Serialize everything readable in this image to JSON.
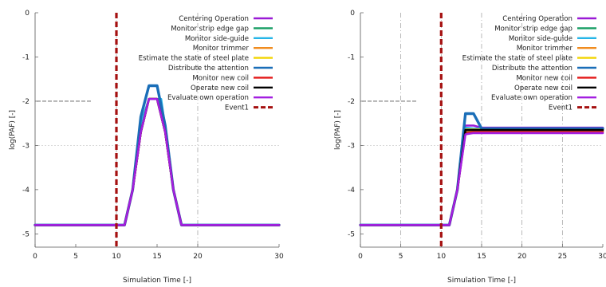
{
  "colors": {
    "centering": "#9a1bd6",
    "strip_edge": "#169e63",
    "side_guide": "#25b5e8",
    "trimmer": "#f08c1f",
    "steel_plate": "#f2d400",
    "attention": "#1a6eb8",
    "new_coil_monitor": "#e31818",
    "operate_coil": "#000000",
    "evaluate": "#a31fe0",
    "event": "#a51010"
  },
  "chart_data": [
    {
      "type": "line",
      "xlabel": "Simulation Time [-]",
      "ylabel": "log(PAF) [-]",
      "xlim": [
        0,
        30
      ],
      "ylim": [
        -5.3,
        0
      ],
      "xticks": [
        0,
        5,
        10,
        15,
        20,
        30
      ],
      "yticks": [
        0,
        -1,
        -2,
        -3,
        -4,
        -5
      ],
      "grid": {
        "x": [
          10,
          20
        ],
        "y": [
          -3
        ]
      },
      "reference_line": {
        "x": [
          0,
          7
        ],
        "y": -2
      },
      "legend_position": "top-right",
      "series": [
        {
          "name": "Centering Operation",
          "color_key": "centering",
          "x": [
            0,
            11,
            12,
            13,
            14,
            15,
            16,
            17,
            18,
            30
          ],
          "y": [
            -4.8,
            -4.8,
            -4.0,
            -2.7,
            -1.95,
            -1.95,
            -2.7,
            -4.0,
            -4.8,
            -4.8
          ]
        },
        {
          "name": "Monitor strip edge gap",
          "color_key": "strip_edge",
          "x": [
            0,
            11,
            12,
            13,
            14,
            15,
            16,
            17,
            18,
            30
          ],
          "y": [
            -4.8,
            -4.8,
            -4.0,
            -2.7,
            -1.95,
            -1.95,
            -2.7,
            -4.0,
            -4.8,
            -4.8
          ]
        },
        {
          "name": "Monitor side-guide",
          "color_key": "side_guide",
          "x": [
            0,
            11,
            12,
            13,
            14,
            15,
            15.5,
            16,
            17,
            18,
            30
          ],
          "y": [
            -4.8,
            -4.8,
            -4.0,
            -2.5,
            -1.95,
            -1.95,
            -1.95,
            -2.6,
            -4.0,
            -4.8,
            -4.8
          ]
        },
        {
          "name": "Monitor trimmer",
          "color_key": "trimmer",
          "x": [
            0,
            11,
            12,
            13,
            14,
            15,
            16,
            17,
            18,
            30
          ],
          "y": [
            -4.8,
            -4.8,
            -4.0,
            -2.7,
            -1.95,
            -1.95,
            -2.7,
            -4.0,
            -4.8,
            -4.8
          ]
        },
        {
          "name": "Estimate the state of steel plate",
          "color_key": "steel_plate",
          "x": [
            0,
            11,
            12,
            13,
            14,
            15,
            16,
            17,
            18,
            30
          ],
          "y": [
            -4.8,
            -4.8,
            -4.0,
            -2.7,
            -1.95,
            -1.95,
            -2.7,
            -4.0,
            -4.8,
            -4.8
          ]
        },
        {
          "name": "Distribute the attention",
          "color_key": "attention",
          "x": [
            0,
            11,
            12,
            13,
            14,
            15,
            16,
            17,
            18,
            30
          ],
          "y": [
            -4.8,
            -4.8,
            -4.0,
            -2.35,
            -1.65,
            -1.65,
            -2.55,
            -4.0,
            -4.8,
            -4.8
          ]
        },
        {
          "name": "Monitor new coil",
          "color_key": "new_coil_monitor",
          "x": [
            0,
            11,
            12,
            13,
            14,
            15,
            16,
            17,
            18,
            30
          ],
          "y": [
            -4.8,
            -4.8,
            -4.0,
            -2.7,
            -1.95,
            -1.95,
            -2.7,
            -4.0,
            -4.8,
            -4.8
          ]
        },
        {
          "name": "Operate new coil",
          "color_key": "operate_coil",
          "x": [
            0,
            11,
            12,
            13,
            14,
            15,
            16,
            17,
            18,
            30
          ],
          "y": [
            -4.8,
            -4.8,
            -4.0,
            -2.7,
            -1.95,
            -1.95,
            -2.7,
            -4.0,
            -4.8,
            -4.8
          ]
        },
        {
          "name": "Evaluate own operation",
          "color_key": "evaluate",
          "x": [
            0,
            11,
            12,
            13,
            14,
            15,
            16,
            17,
            18,
            30
          ],
          "y": [
            -4.8,
            -4.8,
            -4.0,
            -2.7,
            -1.95,
            -1.95,
            -2.7,
            -4.0,
            -4.8,
            -4.8
          ]
        },
        {
          "name": "Event1",
          "color_key": "event",
          "x": [
            10,
            10
          ],
          "y": [
            0,
            -5.3
          ],
          "style": "dashed"
        }
      ]
    },
    {
      "type": "line",
      "xlabel": "Simulation Time [-]",
      "ylabel": "log(PAF) [-]",
      "xlim": [
        0,
        30
      ],
      "ylim": [
        -5.3,
        0
      ],
      "xticks": [
        0,
        5,
        10,
        15,
        20,
        25,
        30
      ],
      "yticks": [
        0,
        -1,
        -2,
        -3,
        -4,
        -5
      ],
      "grid": {
        "x": [
          5,
          10,
          15,
          20,
          25
        ],
        "y": [
          -3
        ]
      },
      "reference_line": {
        "x": [
          0,
          7
        ],
        "y": -2
      },
      "legend_position": "top-right",
      "series": [
        {
          "name": "Centering Operation",
          "color_key": "centering",
          "x": [
            0,
            11,
            12,
            13,
            14,
            15,
            30
          ],
          "y": [
            -4.8,
            -4.8,
            -4.0,
            -2.55,
            -2.55,
            -2.6,
            -2.6
          ]
        },
        {
          "name": "Monitor strip edge gap",
          "color_key": "strip_edge",
          "x": [
            0,
            11,
            12,
            13,
            14,
            30
          ],
          "y": [
            -4.8,
            -4.8,
            -4.0,
            -2.68,
            -2.68,
            -2.68
          ]
        },
        {
          "name": "Monitor side-guide",
          "color_key": "side_guide",
          "x": [
            0,
            11,
            12,
            13,
            14,
            30
          ],
          "y": [
            -4.8,
            -4.8,
            -4.0,
            -2.6,
            -2.62,
            -2.62
          ]
        },
        {
          "name": "Monitor trimmer",
          "color_key": "trimmer",
          "x": [
            0,
            11,
            12,
            13,
            14,
            30
          ],
          "y": [
            -4.8,
            -4.8,
            -4.0,
            -2.66,
            -2.66,
            -2.66
          ]
        },
        {
          "name": "Estimate the state of steel plate",
          "color_key": "steel_plate",
          "x": [
            0,
            11,
            12,
            13,
            14,
            30
          ],
          "y": [
            -4.8,
            -4.8,
            -4.0,
            -2.64,
            -2.64,
            -2.64
          ]
        },
        {
          "name": "Distribute the attention",
          "color_key": "attention",
          "x": [
            0,
            11,
            12,
            13,
            14,
            15,
            30
          ],
          "y": [
            -4.8,
            -4.8,
            -4.0,
            -2.28,
            -2.28,
            -2.62,
            -2.62
          ]
        },
        {
          "name": "Monitor new coil",
          "color_key": "new_coil_monitor",
          "x": [
            0,
            11,
            12,
            13,
            14,
            30
          ],
          "y": [
            -4.8,
            -4.8,
            -4.0,
            -2.72,
            -2.7,
            -2.7
          ]
        },
        {
          "name": "Operate new coil",
          "color_key": "operate_coil",
          "x": [
            0,
            11,
            12,
            13,
            14,
            30
          ],
          "y": [
            -4.8,
            -4.8,
            -4.0,
            -2.65,
            -2.65,
            -2.65
          ]
        },
        {
          "name": "Evaluate own operation",
          "color_key": "evaluate",
          "x": [
            0,
            11,
            12,
            13,
            14,
            30
          ],
          "y": [
            -4.8,
            -4.8,
            -4.0,
            -2.75,
            -2.72,
            -2.72
          ]
        },
        {
          "name": "Event1",
          "color_key": "event",
          "x": [
            10,
            10
          ],
          "y": [
            0,
            -5.3
          ],
          "style": "dashed"
        }
      ]
    }
  ]
}
